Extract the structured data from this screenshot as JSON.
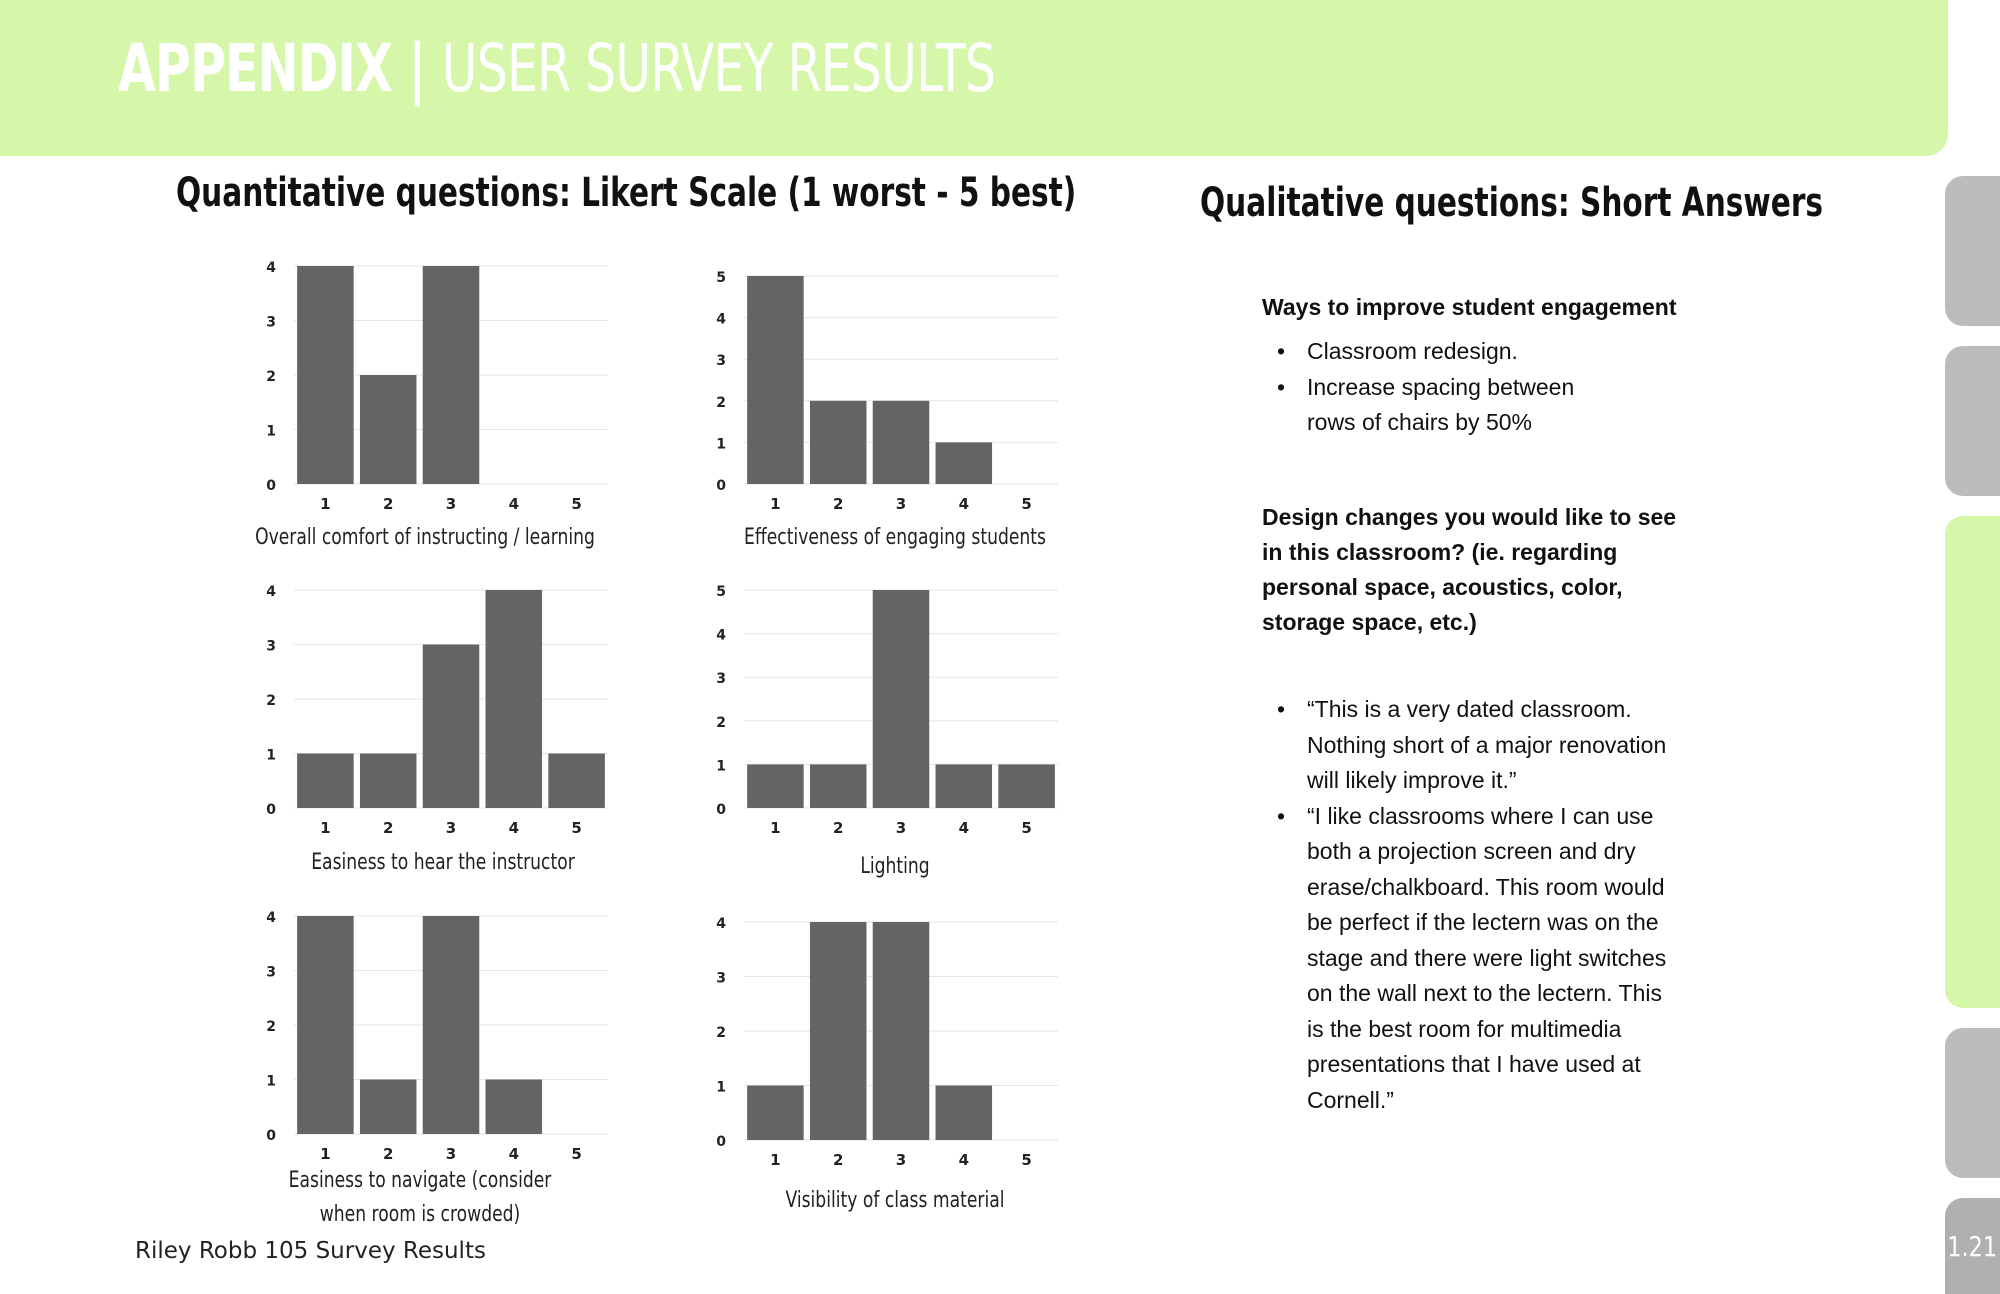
{
  "header": {
    "title_bold": "APPENDIX | ",
    "title_light": "USER SURVEY RESULTS"
  },
  "quantitative": {
    "label_bold": "Quantitative questions:",
    "label_light": " Likert Scale (1 worst - 5 best)"
  },
  "qualitative": {
    "label_bold": "Qualitative questions:",
    "label_light": " Short Answers",
    "questions": [
      {
        "heading": "Ways to improve student engagement",
        "answers": [
          "Classroom redesign.",
          "Increase spacing between rows of chairs by 50%"
        ]
      },
      {
        "heading": "Design changes you would like to see in this classroom? (ie. regarding personal space, acoustics, color, storage space, etc.)",
        "answers": [
          "“This is a very dated classroom. Nothing short of a major renovation will likely improve it.”",
          "“I like classrooms where I can use both a projection screen and dry erase/chalkboard. This room would be perfect if the lectern was on the stage and there were light switches on the wall next to the lectern. This is the best room for multimedia presentations that I have used at Cornell.”"
        ]
      }
    ]
  },
  "chart_data": [
    {
      "type": "bar",
      "categories": [
        "1",
        "2",
        "3",
        "4",
        "5"
      ],
      "values": [
        4,
        2,
        4,
        0,
        0
      ],
      "ylim": [
        0,
        4
      ],
      "xlabel": "Overall comfort of instructing / learning",
      "grid": true
    },
    {
      "type": "bar",
      "categories": [
        "1",
        "2",
        "3",
        "4",
        "5"
      ],
      "values": [
        5,
        2,
        2,
        1,
        0
      ],
      "ylim": [
        0,
        5
      ],
      "xlabel": "Effectiveness of engaging students",
      "grid": true
    },
    {
      "type": "bar",
      "categories": [
        "1",
        "2",
        "3",
        "4",
        "5"
      ],
      "values": [
        1,
        1,
        3,
        4,
        1
      ],
      "ylim": [
        0,
        4
      ],
      "xlabel": "Easiness to hear the instructor",
      "grid": true
    },
    {
      "type": "bar",
      "categories": [
        "1",
        "2",
        "3",
        "4",
        "5"
      ],
      "values": [
        1,
        1,
        5,
        1,
        1
      ],
      "ylim": [
        0,
        5
      ],
      "xlabel": "Lighting",
      "grid": true
    },
    {
      "type": "bar",
      "categories": [
        "1",
        "2",
        "3",
        "4",
        "5"
      ],
      "values": [
        4,
        1,
        4,
        1,
        0
      ],
      "ylim": [
        0,
        4
      ],
      "xlabel": "Easiness to navigate (consider when room is crowded)",
      "grid": true
    },
    {
      "type": "bar",
      "categories": [
        "1",
        "2",
        "3",
        "4",
        "5"
      ],
      "values": [
        1,
        4,
        4,
        1,
        0
      ],
      "ylim": [
        0,
        4
      ],
      "xlabel": "Visibility of class material",
      "grid": true
    }
  ],
  "colors": {
    "header_bg": "#d6f7a9",
    "bar": "#636564",
    "tab_grey": "#bcbcbc",
    "tab_green": "#d6f7a9"
  },
  "footer": {
    "text": "Riley Robb 105 Survey Results",
    "page_number": "1.21"
  }
}
